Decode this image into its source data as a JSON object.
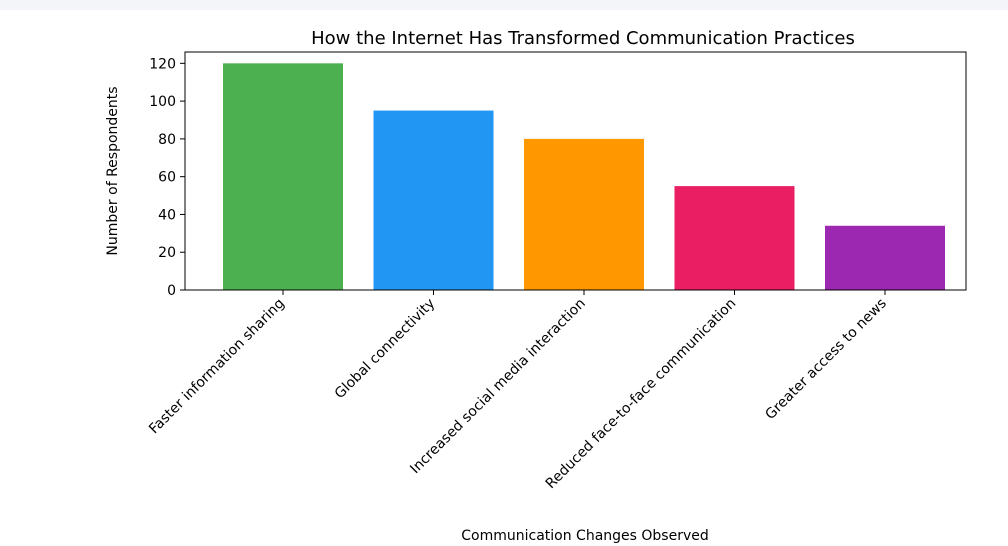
{
  "chart_data": {
    "type": "bar",
    "title": "How the Internet Has Transformed Communication Practices",
    "xlabel": "Communication Changes Observed",
    "ylabel": "Number of Respondents",
    "categories": [
      "Faster information sharing",
      "Global connectivity",
      "Increased social media interaction",
      "Reduced face-to-face communication",
      "Greater access to news"
    ],
    "values": [
      120,
      95,
      80,
      55,
      34
    ],
    "colors": [
      "#4caf50",
      "#2196f3",
      "#ff9800",
      "#e91e63",
      "#9c27b0"
    ],
    "ylim": [
      0,
      126
    ],
    "yticks": [
      0,
      20,
      40,
      60,
      80,
      100,
      120
    ],
    "grid": false,
    "legend": "none"
  }
}
